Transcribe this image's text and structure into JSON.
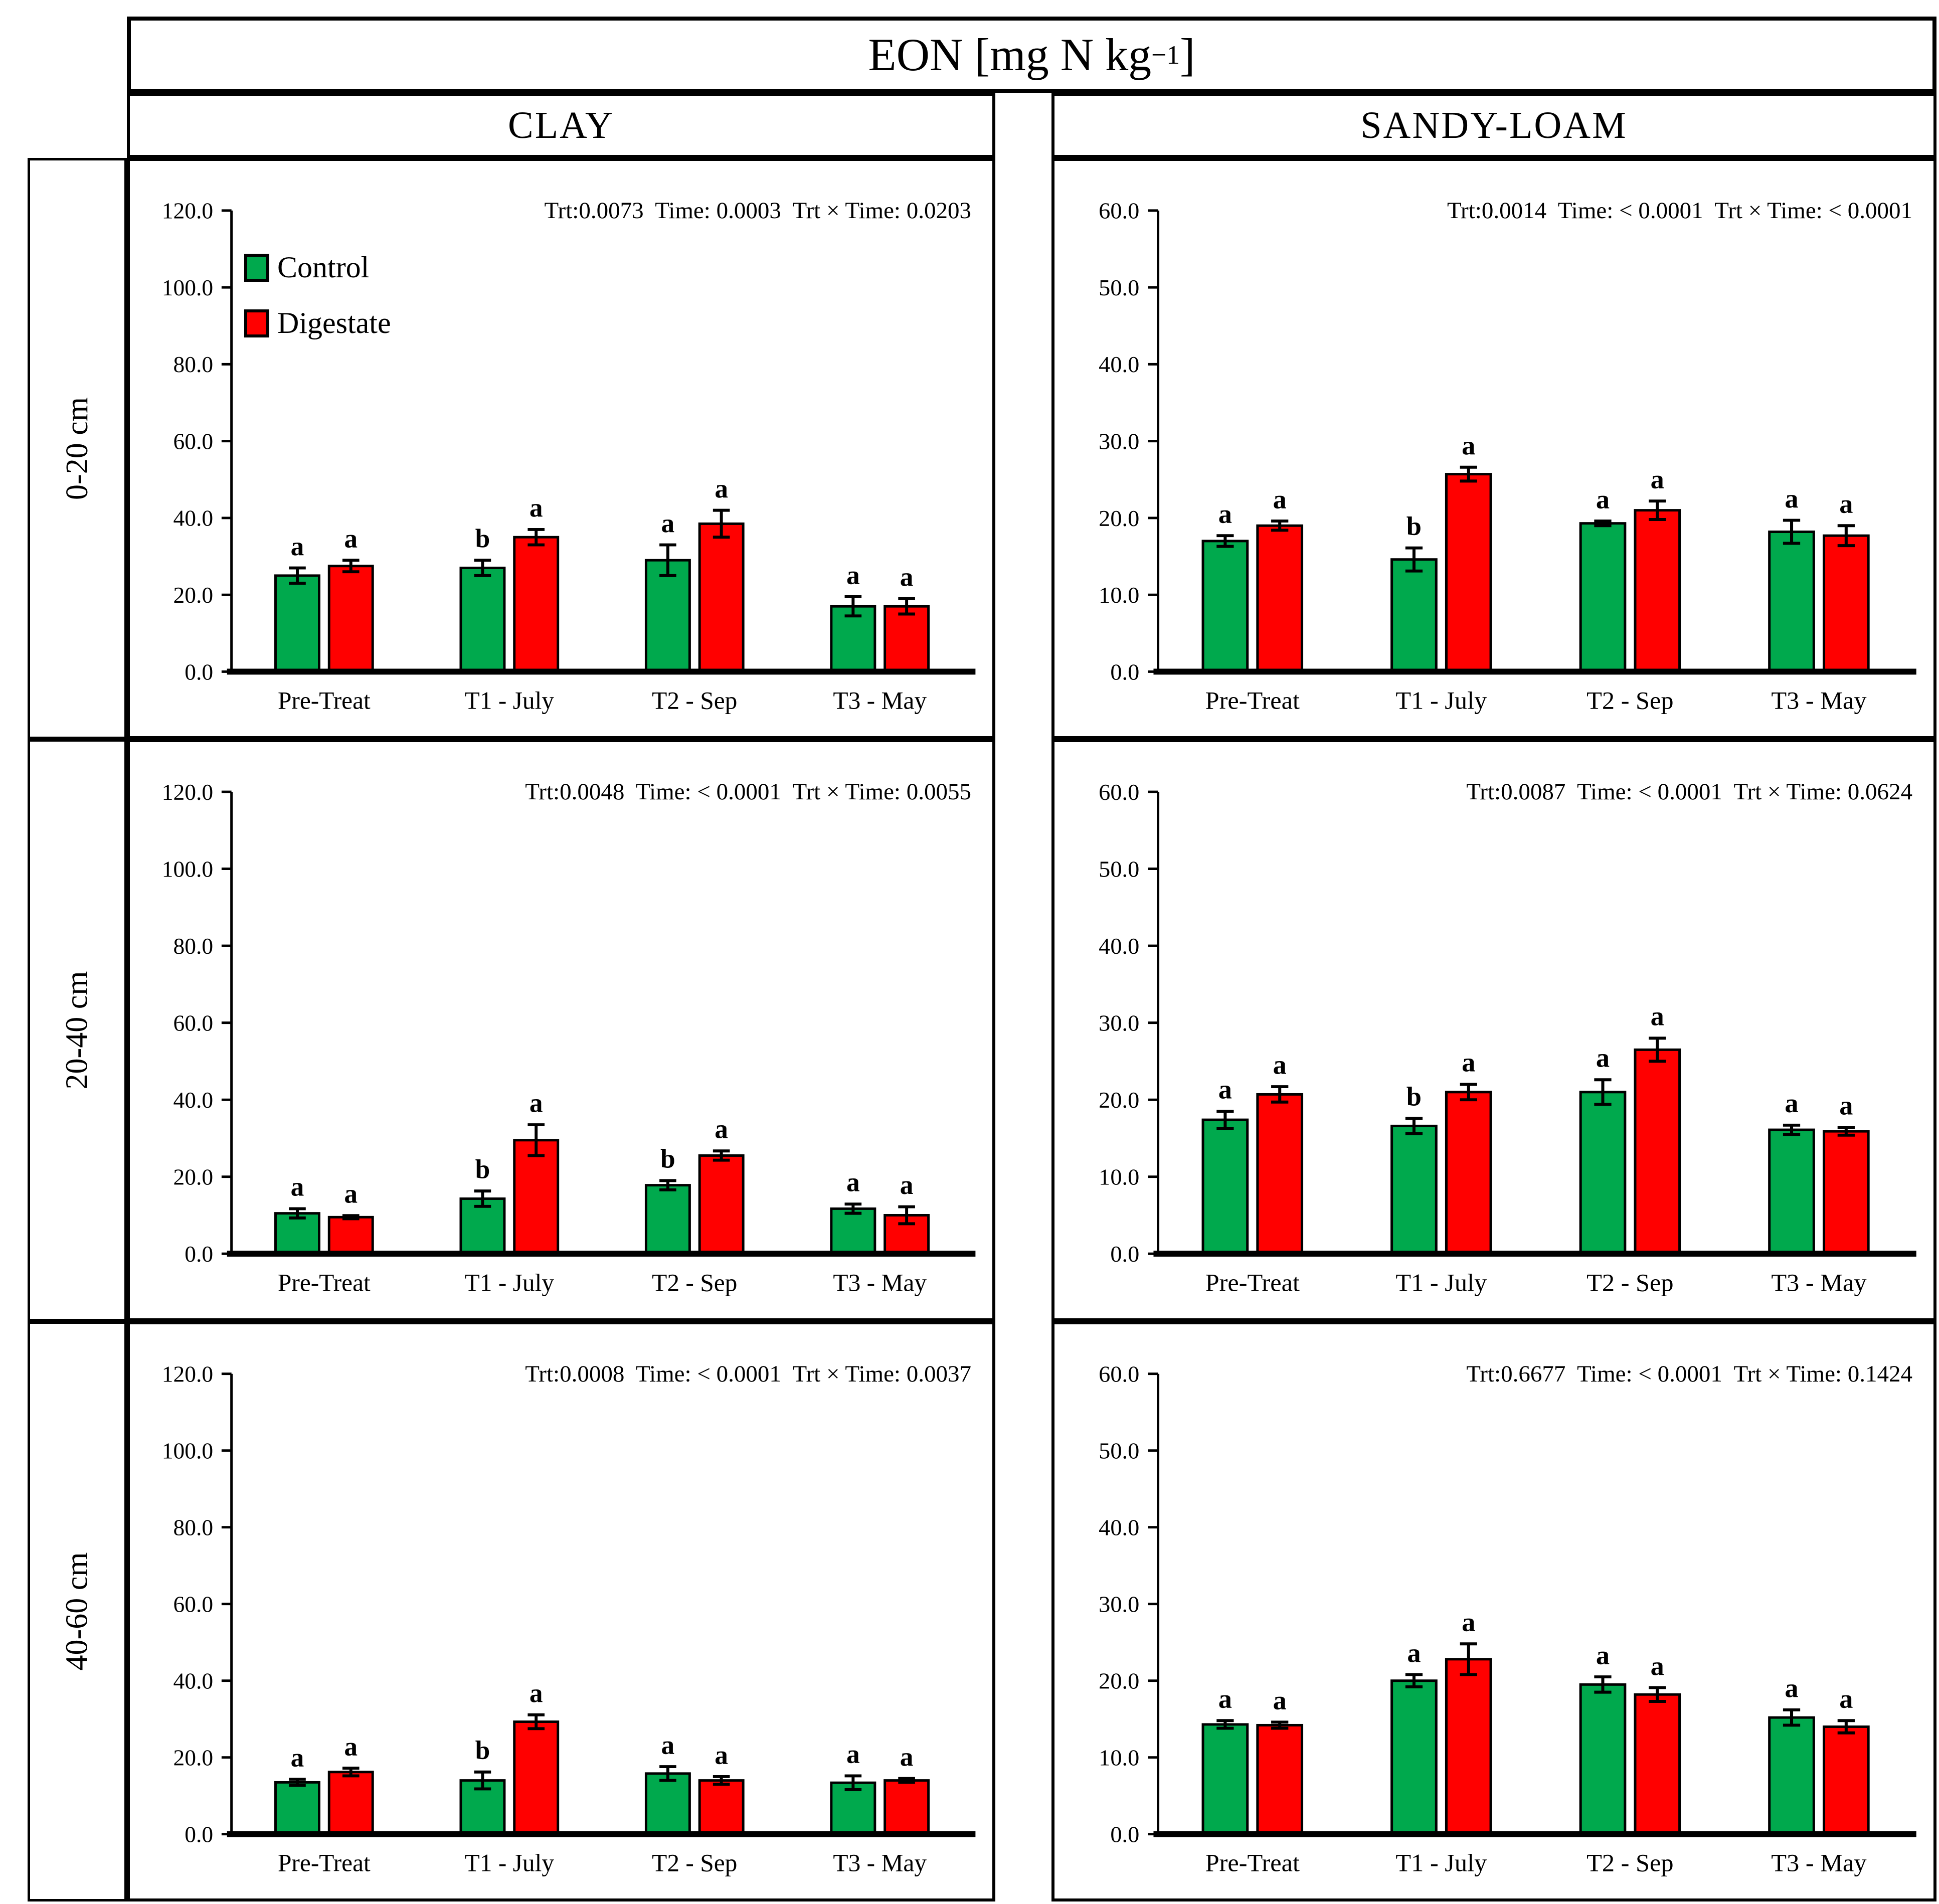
{
  "title": {
    "pre": "EON [mg N kg",
    "sup": "−1",
    "post": "]"
  },
  "columns": {
    "left": "CLAY",
    "right": "SANDY-LOAM"
  },
  "row_labels": {
    "r0": "0-20 cm",
    "r1": "20-40 cm",
    "r2": "40-60 cm"
  },
  "legend": {
    "control": {
      "label": "Control",
      "color": "#00A94D"
    },
    "digestate": {
      "label": "Digestate",
      "color": "#FF0000"
    }
  },
  "chart_data": [
    {
      "type": "bar",
      "soil": "CLAY",
      "depth": "0-20 cm",
      "stats": "Trt:0.0073  Time: 0.0003  Trt × Time: 0.0203",
      "categories": [
        "Pre-Treat",
        "T1 - July",
        "T2 - Sep",
        "T3 - May"
      ],
      "ylim": [
        0,
        120
      ],
      "ytick_step": 20,
      "grid": false,
      "legend_visible": true,
      "series": [
        {
          "name": "Control",
          "values": [
            25.0,
            27.0,
            29.0,
            17.0
          ],
          "errors": [
            2.0,
            2.0,
            4.0,
            2.5
          ],
          "letters": [
            "a",
            "b",
            "a",
            "a"
          ]
        },
        {
          "name": "Digestate",
          "values": [
            27.5,
            35.0,
            38.5,
            17.0
          ],
          "errors": [
            1.5,
            2.0,
            3.5,
            2.0
          ],
          "letters": [
            "a",
            "a",
            "a",
            "a"
          ]
        }
      ]
    },
    {
      "type": "bar",
      "soil": "SANDY-LOAM",
      "depth": "0-20 cm",
      "stats": "Trt:0.0014  Time: < 0.0001  Trt × Time: < 0.0001",
      "categories": [
        "Pre-Treat",
        "T1 - July",
        "T2 - Sep",
        "T3 - May"
      ],
      "ylim": [
        0,
        60
      ],
      "ytick_step": 10,
      "grid": false,
      "legend_visible": false,
      "series": [
        {
          "name": "Control",
          "values": [
            17.0,
            14.6,
            19.3,
            18.2
          ],
          "errors": [
            0.7,
            1.5,
            0.3,
            1.5
          ],
          "letters": [
            "a",
            "b",
            "a",
            "a"
          ]
        },
        {
          "name": "Digestate",
          "values": [
            19.0,
            25.7,
            21.0,
            17.7
          ],
          "errors": [
            0.6,
            0.9,
            1.2,
            1.3
          ],
          "letters": [
            "a",
            "a",
            "a",
            "a"
          ]
        }
      ]
    },
    {
      "type": "bar",
      "soil": "CLAY",
      "depth": "20-40 cm",
      "stats": "Trt:0.0048  Time: < 0.0001  Trt × Time: 0.0055",
      "categories": [
        "Pre-Treat",
        "T1 - July",
        "T2 - Sep",
        "T3 - May"
      ],
      "ylim": [
        0,
        120
      ],
      "ytick_step": 20,
      "grid": false,
      "legend_visible": false,
      "series": [
        {
          "name": "Control",
          "values": [
            10.5,
            14.3,
            17.8,
            11.7
          ],
          "errors": [
            1.2,
            2.0,
            1.2,
            1.2
          ],
          "letters": [
            "a",
            "b",
            "b",
            "a"
          ]
        },
        {
          "name": "Digestate",
          "values": [
            9.5,
            29.5,
            25.5,
            10.0
          ],
          "errors": [
            0.4,
            4.0,
            1.2,
            2.2
          ],
          "letters": [
            "a",
            "a",
            "a",
            "a"
          ]
        }
      ]
    },
    {
      "type": "bar",
      "soil": "SANDY-LOAM",
      "depth": "20-40 cm",
      "stats": "Trt:0.0087  Time: < 0.0001  Trt × Time: 0.0624",
      "categories": [
        "Pre-Treat",
        "T1 - July",
        "T2 - Sep",
        "T3 - May"
      ],
      "ylim": [
        0,
        60
      ],
      "ytick_step": 10,
      "grid": false,
      "legend_visible": false,
      "series": [
        {
          "name": "Control",
          "values": [
            17.4,
            16.6,
            21.0,
            16.1
          ],
          "errors": [
            1.1,
            1.0,
            1.6,
            0.6
          ],
          "letters": [
            "a",
            "b",
            "a",
            "a"
          ]
        },
        {
          "name": "Digestate",
          "values": [
            20.7,
            21.0,
            26.5,
            15.9
          ],
          "errors": [
            1.0,
            1.0,
            1.5,
            0.5
          ],
          "letters": [
            "a",
            "a",
            "a",
            "a"
          ]
        }
      ]
    },
    {
      "type": "bar",
      "soil": "CLAY",
      "depth": "40-60 cm",
      "stats": "Trt:0.0008  Time: < 0.0001  Trt × Time: 0.0037",
      "categories": [
        "Pre-Treat",
        "T1 - July",
        "T2 - Sep",
        "T3 - May"
      ],
      "ylim": [
        0,
        120
      ],
      "ytick_step": 20,
      "grid": false,
      "legend_visible": false,
      "series": [
        {
          "name": "Control",
          "values": [
            13.5,
            14.0,
            15.8,
            13.4
          ],
          "errors": [
            0.8,
            2.2,
            1.8,
            1.8
          ],
          "letters": [
            "a",
            "b",
            "a",
            "a"
          ]
        },
        {
          "name": "Digestate",
          "values": [
            16.2,
            29.3,
            14.0,
            14.0
          ],
          "errors": [
            1.0,
            1.8,
            1.0,
            0.5
          ],
          "letters": [
            "a",
            "a",
            "a",
            "a"
          ]
        }
      ]
    },
    {
      "type": "bar",
      "soil": "SANDY-LOAM",
      "depth": "40-60 cm",
      "stats": "Trt:0.6677  Time: < 0.0001  Trt × Time: 0.1424",
      "categories": [
        "Pre-Treat",
        "T1 - July",
        "T2 - Sep",
        "T3 - May"
      ],
      "ylim": [
        0,
        60
      ],
      "ytick_step": 10,
      "grid": false,
      "legend_visible": false,
      "series": [
        {
          "name": "Control",
          "values": [
            14.3,
            20.0,
            19.5,
            15.2
          ],
          "errors": [
            0.5,
            0.8,
            1.0,
            1.0
          ],
          "letters": [
            "a",
            "a",
            "a",
            "a"
          ]
        },
        {
          "name": "Digestate",
          "values": [
            14.2,
            22.8,
            18.2,
            14.0
          ],
          "errors": [
            0.4,
            2.0,
            0.9,
            0.8
          ],
          "letters": [
            "a",
            "a",
            "a",
            "a"
          ]
        }
      ]
    }
  ]
}
